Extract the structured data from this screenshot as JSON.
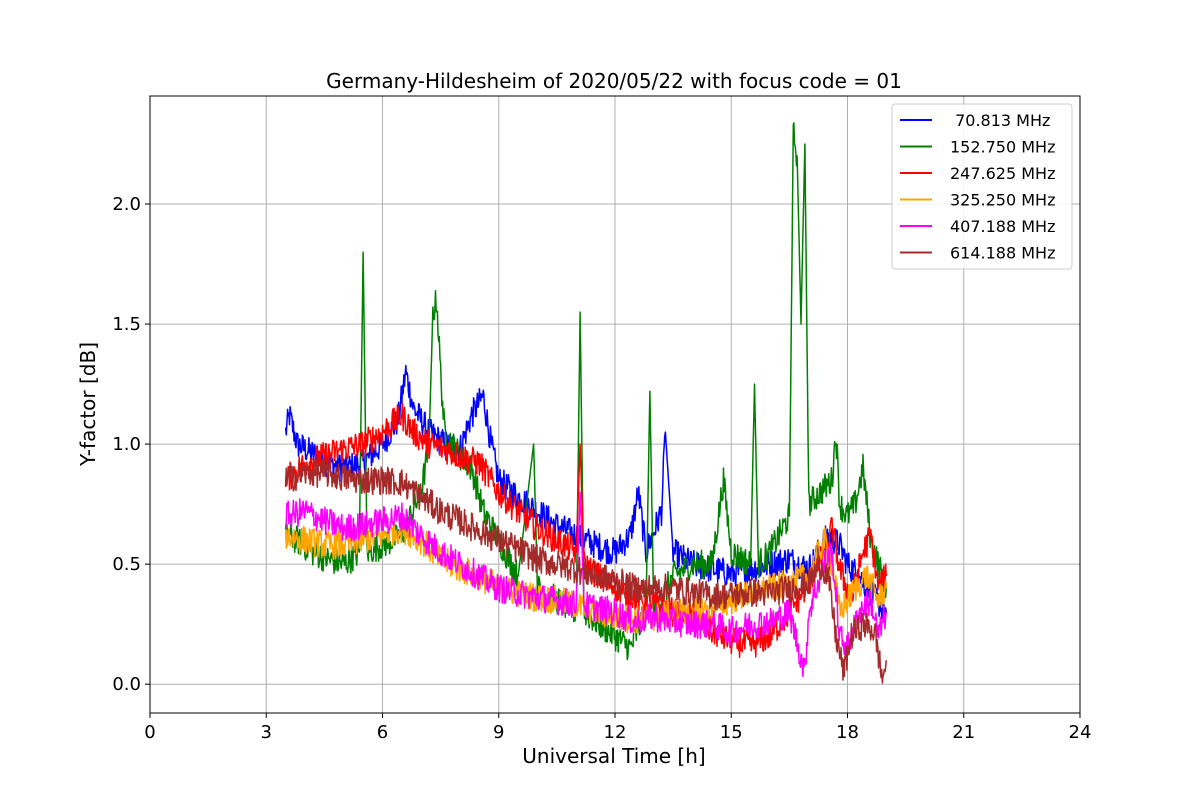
{
  "chart_data": {
    "type": "line",
    "title": "Germany-Hildesheim of 2020/05/22 with focus code = 01",
    "xlabel": "Universal Time [h]",
    "ylabel": "Y-factor [dB]",
    "xlim": [
      0,
      24
    ],
    "ylim": [
      -0.12,
      2.45
    ],
    "xticks": [
      0,
      3,
      6,
      9,
      12,
      15,
      18,
      21,
      24
    ],
    "xtick_labels": [
      "0",
      "3",
      "6",
      "9",
      "12",
      "15",
      "18",
      "21",
      "24"
    ],
    "yticks": [
      0.0,
      0.5,
      1.0,
      1.5,
      2.0
    ],
    "ytick_labels": [
      "0.0",
      "0.5",
      "1.0",
      "1.5",
      "2.0"
    ],
    "grid": true,
    "legend_position": "top-right",
    "series": [
      {
        "name": " 70.813 MHz",
        "color": "#0000ff",
        "points": [
          [
            3.5,
            1.05
          ],
          [
            3.6,
            1.12
          ],
          [
            3.8,
            1.0
          ],
          [
            4.0,
            0.98
          ],
          [
            4.3,
            0.95
          ],
          [
            4.6,
            0.92
          ],
          [
            5.0,
            0.9
          ],
          [
            5.5,
            0.92
          ],
          [
            6.0,
            1.0
          ],
          [
            6.4,
            1.1
          ],
          [
            6.6,
            1.3
          ],
          [
            6.8,
            1.15
          ],
          [
            7.2,
            1.05
          ],
          [
            7.6,
            1.0
          ],
          [
            8.0,
            0.98
          ],
          [
            8.3,
            1.12
          ],
          [
            8.6,
            1.2
          ],
          [
            8.8,
            1.0
          ],
          [
            9.0,
            0.85
          ],
          [
            9.5,
            0.78
          ],
          [
            10.0,
            0.72
          ],
          [
            10.5,
            0.66
          ],
          [
            11.0,
            0.62
          ],
          [
            11.5,
            0.58
          ],
          [
            12.0,
            0.55
          ],
          [
            12.4,
            0.62
          ],
          [
            12.6,
            0.8
          ],
          [
            12.8,
            0.55
          ],
          [
            13.2,
            0.72
          ],
          [
            13.3,
            1.05
          ],
          [
            13.5,
            0.55
          ],
          [
            14.0,
            0.5
          ],
          [
            14.5,
            0.48
          ],
          [
            15.0,
            0.46
          ],
          [
            15.5,
            0.48
          ],
          [
            16.0,
            0.5
          ],
          [
            16.5,
            0.52
          ],
          [
            17.0,
            0.48
          ],
          [
            17.5,
            0.62
          ],
          [
            17.8,
            0.58
          ],
          [
            18.0,
            0.5
          ],
          [
            18.3,
            0.45
          ],
          [
            18.6,
            0.38
          ],
          [
            19.0,
            0.3
          ]
        ]
      },
      {
        "name": "152.750 MHz",
        "color": "#008000",
        "points": [
          [
            3.5,
            0.62
          ],
          [
            3.8,
            0.6
          ],
          [
            4.2,
            0.55
          ],
          [
            4.6,
            0.52
          ],
          [
            5.0,
            0.5
          ],
          [
            5.4,
            0.55
          ],
          [
            5.5,
            1.8
          ],
          [
            5.6,
            0.55
          ],
          [
            6.0,
            0.58
          ],
          [
            6.5,
            0.62
          ],
          [
            7.0,
            0.8
          ],
          [
            7.2,
            1.0
          ],
          [
            7.3,
            1.55
          ],
          [
            7.4,
            1.6
          ],
          [
            7.5,
            1.3
          ],
          [
            7.6,
            1.05
          ],
          [
            8.0,
            0.95
          ],
          [
            8.3,
            0.9
          ],
          [
            8.6,
            0.72
          ],
          [
            9.0,
            0.6
          ],
          [
            9.5,
            0.45
          ],
          [
            9.9,
            1.0
          ],
          [
            10.0,
            0.4
          ],
          [
            10.5,
            0.35
          ],
          [
            11.0,
            0.3
          ],
          [
            11.1,
            1.55
          ],
          [
            11.2,
            0.3
          ],
          [
            11.6,
            0.25
          ],
          [
            12.0,
            0.2
          ],
          [
            12.4,
            0.15
          ],
          [
            12.8,
            0.3
          ],
          [
            12.9,
            1.22
          ],
          [
            13.0,
            0.3
          ],
          [
            13.5,
            0.45
          ],
          [
            14.0,
            0.5
          ],
          [
            14.5,
            0.5
          ],
          [
            14.8,
            0.85
          ],
          [
            15.0,
            0.55
          ],
          [
            15.5,
            0.5
          ],
          [
            15.6,
            1.25
          ],
          [
            15.7,
            0.5
          ],
          [
            16.0,
            0.55
          ],
          [
            16.5,
            0.7
          ],
          [
            16.6,
            2.3
          ],
          [
            16.7,
            2.2
          ],
          [
            16.8,
            1.5
          ],
          [
            16.9,
            2.25
          ],
          [
            17.0,
            0.75
          ],
          [
            17.3,
            0.8
          ],
          [
            17.6,
            0.85
          ],
          [
            17.7,
            1.05
          ],
          [
            17.8,
            0.75
          ],
          [
            18.0,
            0.7
          ],
          [
            18.2,
            0.75
          ],
          [
            18.4,
            0.9
          ],
          [
            18.6,
            0.6
          ],
          [
            19.0,
            0.4
          ]
        ]
      },
      {
        "name": "247.625 MHz",
        "color": "#ff0000",
        "points": [
          [
            3.5,
            0.85
          ],
          [
            4.0,
            0.92
          ],
          [
            4.5,
            0.95
          ],
          [
            5.0,
            0.98
          ],
          [
            5.5,
            1.0
          ],
          [
            6.0,
            1.05
          ],
          [
            6.5,
            1.12
          ],
          [
            6.8,
            1.05
          ],
          [
            7.2,
            1.0
          ],
          [
            7.6,
            0.98
          ],
          [
            8.0,
            0.95
          ],
          [
            8.5,
            0.92
          ],
          [
            9.0,
            0.8
          ],
          [
            9.5,
            0.72
          ],
          [
            10.0,
            0.65
          ],
          [
            10.5,
            0.6
          ],
          [
            11.0,
            0.55
          ],
          [
            11.1,
            1.0
          ],
          [
            11.2,
            0.5
          ],
          [
            11.8,
            0.42
          ],
          [
            12.3,
            0.38
          ],
          [
            13.0,
            0.33
          ],
          [
            13.5,
            0.3
          ],
          [
            14.0,
            0.28
          ],
          [
            14.5,
            0.22
          ],
          [
            15.0,
            0.18
          ],
          [
            15.5,
            0.16
          ],
          [
            16.0,
            0.2
          ],
          [
            16.5,
            0.3
          ],
          [
            17.0,
            0.42
          ],
          [
            17.4,
            0.55
          ],
          [
            17.6,
            0.65
          ],
          [
            17.8,
            0.48
          ],
          [
            18.1,
            0.35
          ],
          [
            18.4,
            0.55
          ],
          [
            18.6,
            0.62
          ],
          [
            18.8,
            0.4
          ],
          [
            19.0,
            0.45
          ]
        ]
      },
      {
        "name": "325.250 MHz",
        "color": "#ffa500",
        "points": [
          [
            3.5,
            0.62
          ],
          [
            4.0,
            0.6
          ],
          [
            4.5,
            0.58
          ],
          [
            5.0,
            0.58
          ],
          [
            5.5,
            0.6
          ],
          [
            6.0,
            0.62
          ],
          [
            6.5,
            0.65
          ],
          [
            7.0,
            0.6
          ],
          [
            7.5,
            0.52
          ],
          [
            8.0,
            0.48
          ],
          [
            8.5,
            0.45
          ],
          [
            9.0,
            0.4
          ],
          [
            9.5,
            0.38
          ],
          [
            10.0,
            0.36
          ],
          [
            10.5,
            0.35
          ],
          [
            11.0,
            0.33
          ],
          [
            11.5,
            0.3
          ],
          [
            12.0,
            0.28
          ],
          [
            12.5,
            0.27
          ],
          [
            13.0,
            0.28
          ],
          [
            13.5,
            0.3
          ],
          [
            14.0,
            0.3
          ],
          [
            14.5,
            0.32
          ],
          [
            15.0,
            0.35
          ],
          [
            15.5,
            0.38
          ],
          [
            16.0,
            0.4
          ],
          [
            16.5,
            0.42
          ],
          [
            17.0,
            0.45
          ],
          [
            17.4,
            0.6
          ],
          [
            17.6,
            0.5
          ],
          [
            17.8,
            0.3
          ],
          [
            18.2,
            0.4
          ],
          [
            18.5,
            0.45
          ],
          [
            18.8,
            0.35
          ],
          [
            19.0,
            0.4
          ]
        ]
      },
      {
        "name": "407.188 MHz",
        "color": "#ff00ff",
        "points": [
          [
            3.5,
            0.7
          ],
          [
            4.0,
            0.72
          ],
          [
            4.5,
            0.68
          ],
          [
            5.0,
            0.65
          ],
          [
            5.5,
            0.66
          ],
          [
            6.0,
            0.68
          ],
          [
            6.5,
            0.7
          ],
          [
            7.0,
            0.62
          ],
          [
            7.5,
            0.55
          ],
          [
            8.0,
            0.5
          ],
          [
            8.5,
            0.45
          ],
          [
            9.0,
            0.4
          ],
          [
            9.5,
            0.38
          ],
          [
            10.0,
            0.36
          ],
          [
            10.5,
            0.35
          ],
          [
            11.0,
            0.33
          ],
          [
            11.1,
            0.8
          ],
          [
            11.2,
            0.33
          ],
          [
            11.5,
            0.32
          ],
          [
            12.0,
            0.3
          ],
          [
            12.5,
            0.26
          ],
          [
            13.0,
            0.28
          ],
          [
            13.5,
            0.26
          ],
          [
            14.0,
            0.25
          ],
          [
            14.5,
            0.25
          ],
          [
            15.0,
            0.22
          ],
          [
            15.5,
            0.25
          ],
          [
            16.0,
            0.26
          ],
          [
            16.5,
            0.3
          ],
          [
            16.9,
            0.05
          ],
          [
            17.0,
            0.3
          ],
          [
            17.4,
            0.5
          ],
          [
            17.6,
            0.55
          ],
          [
            17.8,
            0.2
          ],
          [
            18.0,
            0.15
          ],
          [
            18.3,
            0.3
          ],
          [
            18.6,
            0.35
          ],
          [
            18.8,
            0.2
          ],
          [
            19.0,
            0.3
          ]
        ]
      },
      {
        "name": "614.188 MHz",
        "color": "#a52a2a",
        "points": [
          [
            3.5,
            0.85
          ],
          [
            4.0,
            0.88
          ],
          [
            4.5,
            0.88
          ],
          [
            5.0,
            0.86
          ],
          [
            5.5,
            0.85
          ],
          [
            6.0,
            0.85
          ],
          [
            6.5,
            0.84
          ],
          [
            7.0,
            0.78
          ],
          [
            7.5,
            0.72
          ],
          [
            8.0,
            0.68
          ],
          [
            8.5,
            0.64
          ],
          [
            9.0,
            0.6
          ],
          [
            9.5,
            0.56
          ],
          [
            10.0,
            0.52
          ],
          [
            10.5,
            0.5
          ],
          [
            11.0,
            0.48
          ],
          [
            11.5,
            0.45
          ],
          [
            12.0,
            0.43
          ],
          [
            12.5,
            0.4
          ],
          [
            13.0,
            0.4
          ],
          [
            13.5,
            0.4
          ],
          [
            14.0,
            0.38
          ],
          [
            14.5,
            0.37
          ],
          [
            15.0,
            0.37
          ],
          [
            15.5,
            0.38
          ],
          [
            16.0,
            0.38
          ],
          [
            16.5,
            0.4
          ],
          [
            17.0,
            0.42
          ],
          [
            17.3,
            0.5
          ],
          [
            17.5,
            0.45
          ],
          [
            17.7,
            0.2
          ],
          [
            17.9,
            0.05
          ],
          [
            18.1,
            0.2
          ],
          [
            18.4,
            0.25
          ],
          [
            18.7,
            0.22
          ],
          [
            18.9,
            0.02
          ],
          [
            19.0,
            0.1
          ]
        ]
      }
    ]
  }
}
